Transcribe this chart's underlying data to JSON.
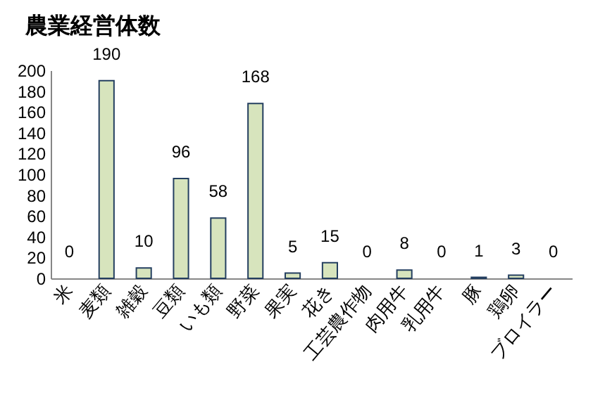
{
  "chart_data": {
    "type": "bar",
    "title": "農業経営体数",
    "categories": [
      "米",
      "麦類",
      "雑穀",
      "豆類",
      "いも類",
      "野菜",
      "果実",
      "花き",
      "工芸農作物",
      "肉用牛",
      "乳用牛",
      "豚",
      "鶏卵",
      "ブロイラー"
    ],
    "values": [
      0,
      190,
      10,
      96,
      58,
      168,
      5,
      15,
      0,
      8,
      0,
      1,
      3,
      0
    ],
    "color": "#d7e4bd",
    "ylim": [
      0,
      200
    ],
    "yticks": [
      0,
      20,
      40,
      60,
      80,
      100,
      120,
      140,
      160,
      180,
      200
    ],
    "grid": false,
    "data_labels": true
  }
}
